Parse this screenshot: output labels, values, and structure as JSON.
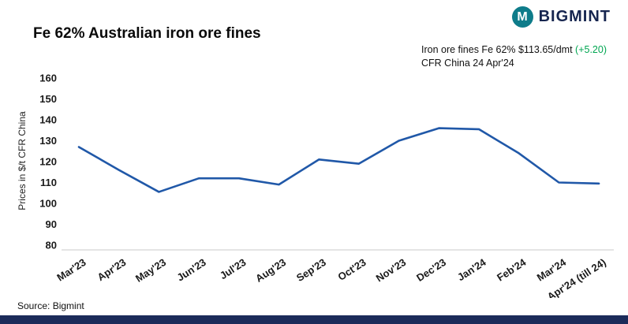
{
  "header": {
    "title": "Fe 62% Australian iron ore fines",
    "brand": "BIGMINT",
    "brand_icon": "M",
    "price_line1_prefix": "Iron ore fines Fe 62% $113.65/dmt ",
    "price_line1_change": "(+5.20)",
    "price_line2": "CFR China 24 Apr'24"
  },
  "chart_data": {
    "type": "line",
    "title": "Fe 62% Australian iron ore fines",
    "categories": [
      "Mar'23",
      "Apr'23",
      "May'23",
      "Jun'23",
      "Jul'23",
      "Aug'23",
      "Sep'23",
      "Oct'23",
      "Nov'23",
      "Dec'23",
      "Jan'24",
      "Feb'24",
      "Mar'24",
      "Apr'24 (till 24)"
    ],
    "values": [
      127,
      116,
      105.5,
      112,
      112,
      109,
      121,
      119,
      130,
      136,
      135.5,
      124,
      110,
      109.5
    ],
    "xlabel": "",
    "ylabel": "Prices in $/t CFR China",
    "ylim": [
      80,
      160
    ],
    "ytick_step": 10,
    "grid": false,
    "legend": false,
    "line_color": "#2058a8",
    "axis_color": "#c9c9c9"
  },
  "footer": {
    "source": "Source: Bigmint"
  },
  "colors": {
    "accent_navy": "#1c2b5a",
    "brand_navy": "#16254f",
    "brand_teal": "#0e7c8a",
    "positive_green": "#00a651"
  }
}
